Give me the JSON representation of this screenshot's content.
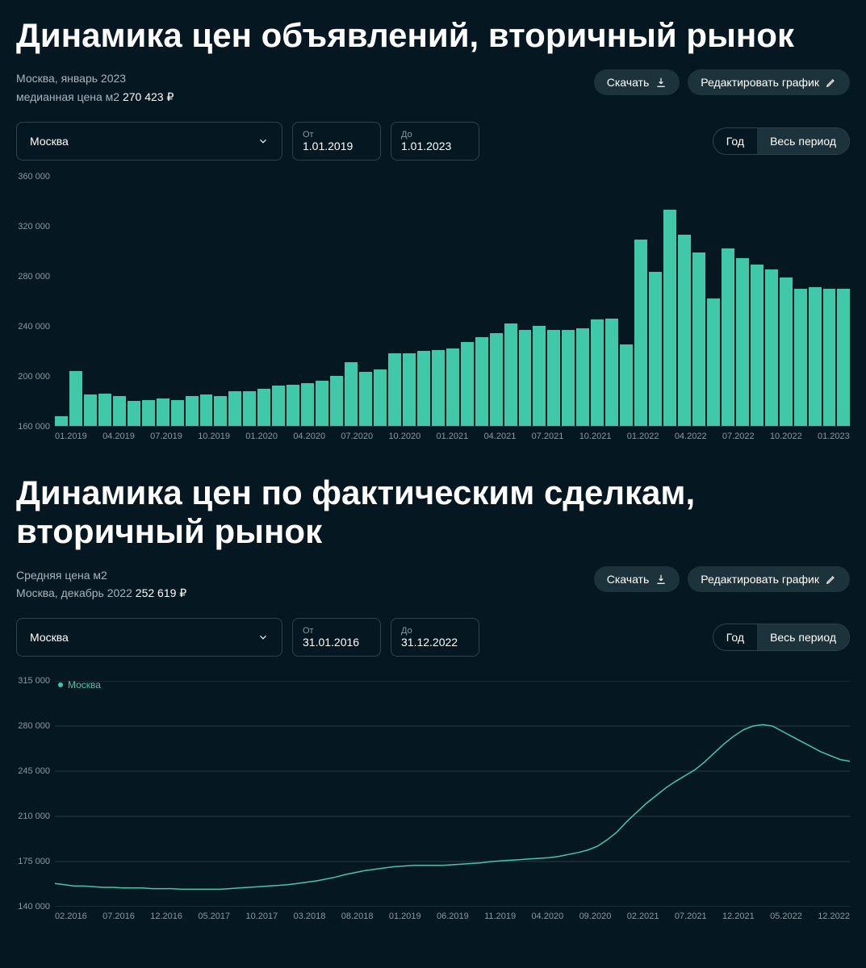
{
  "chart1": {
    "title": "Динамика цен объявлений, вторичный рынок",
    "meta_line1": "Москва, январь 2023",
    "meta_label": "медианная цена м2",
    "meta_value": "270 423 ₽",
    "download_label": "Скачать",
    "edit_label": "Редактировать график",
    "city_select": "Москва",
    "from_label": "От",
    "from_value": "1.01.2019",
    "to_label": "До",
    "to_value": "1.01.2023",
    "period_year": "Год",
    "period_all": "Весь период",
    "type": "bar",
    "bar_color": "#3fc9a9",
    "background_color": "#051821",
    "grid_color": "#2a3a41",
    "text_color": "#8a989f",
    "y_min": 160000,
    "y_max": 360000,
    "y_ticks": [
      160000,
      200000,
      240000,
      280000,
      320000,
      360000
    ],
    "y_tick_labels": [
      "160 000",
      "200 000",
      "240 000",
      "280 000",
      "320 000",
      "360 000"
    ],
    "x_tick_labels": [
      "01.2019",
      "04.2019",
      "07.2019",
      "10.2019",
      "01.2020",
      "04.2020",
      "07.2020",
      "10.2020",
      "01.2021",
      "04.2021",
      "07.2021",
      "10.2021",
      "01.2022",
      "04.2022",
      "07.2022",
      "10.2022",
      "01.2023"
    ],
    "values": [
      168000,
      204000,
      185000,
      186000,
      184000,
      180000,
      181000,
      182000,
      181000,
      184000,
      185000,
      184000,
      188000,
      188000,
      190000,
      192000,
      193000,
      194000,
      196000,
      200000,
      211000,
      203000,
      205000,
      218000,
      218000,
      220000,
      221000,
      222000,
      227000,
      231000,
      234000,
      242000,
      237000,
      240000,
      237000,
      237000,
      238000,
      245000,
      246000,
      225000,
      309000,
      283000,
      333000,
      313000,
      299000,
      262000,
      302000,
      294000,
      289000,
      285000,
      279000,
      270000,
      271000,
      270000,
      270000
    ]
  },
  "chart2": {
    "title": "Динамика цен по фактическим сделкам, вторичный рынок",
    "meta_label": "Средняя цена м2",
    "meta_line2": "Москва, декабрь 2022",
    "meta_value": "252 619 ₽",
    "download_label": "Скачать",
    "edit_label": "Редактировать график",
    "city_select": "Москва",
    "from_label": "От",
    "from_value": "31.01.2016",
    "to_label": "До",
    "to_value": "31.12.2022",
    "period_year": "Год",
    "period_all": "Весь период",
    "legend_label": "Москва",
    "type": "line",
    "line_color": "#3fc9a9",
    "line_width": 1.5,
    "background_color": "#051821",
    "grid_color": "#2a3a41",
    "text_color": "#8a989f",
    "y_min": 140000,
    "y_max": 315000,
    "y_ticks": [
      140000,
      175000,
      210000,
      245000,
      280000,
      315000
    ],
    "y_tick_labels": [
      "140 000",
      "175 000",
      "210 000",
      "245 000",
      "280 000",
      "315 000"
    ],
    "x_tick_labels": [
      "02.2016",
      "07.2016",
      "12.2016",
      "05.2017",
      "10.2017",
      "03.2018",
      "08.2018",
      "01.2019",
      "06.2019",
      "11.2019",
      "04.2020",
      "09.2020",
      "02.2021",
      "07.2021",
      "12.2021",
      "05.2022",
      "12.2022"
    ],
    "values": [
      158000,
      157000,
      156000,
      156000,
      155500,
      155000,
      155000,
      154500,
      154500,
      154500,
      154000,
      154000,
      154000,
      153500,
      153500,
      153500,
      153500,
      153500,
      154000,
      154500,
      155000,
      155500,
      156000,
      156500,
      157000,
      158000,
      159000,
      160000,
      161500,
      163000,
      165000,
      166500,
      168000,
      169000,
      170000,
      171000,
      171500,
      172000,
      172000,
      172000,
      172000,
      172500,
      173000,
      173500,
      174000,
      175000,
      175500,
      176000,
      176500,
      177000,
      177500,
      178000,
      179000,
      180500,
      182000,
      184000,
      187000,
      192000,
      198000,
      206000,
      213000,
      220000,
      226000,
      232000,
      237000,
      241500,
      246000,
      252000,
      259000,
      266000,
      272000,
      277000,
      280000,
      281000,
      280000,
      276000,
      272000,
      268000,
      264000,
      260000,
      257000,
      254000,
      252619
    ]
  }
}
